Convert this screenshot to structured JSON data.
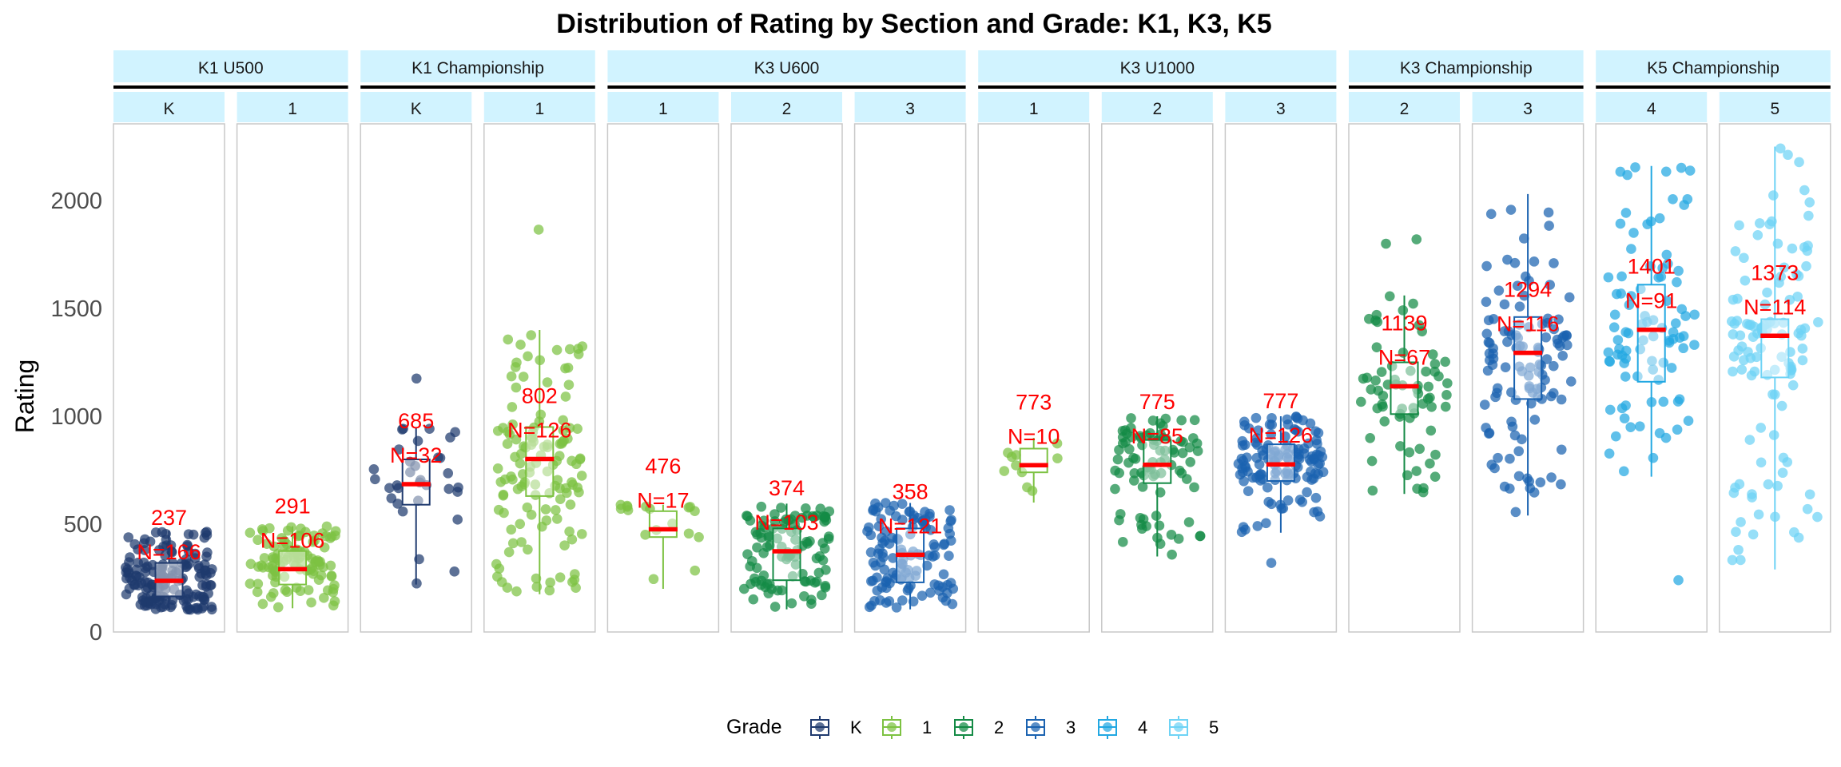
{
  "chart_data": {
    "type": "box",
    "title": "Distribution of Rating by Section and Grade: K1, K3, K5",
    "ylabel": "Rating",
    "xlabel": "",
    "ylim": [
      0,
      2350
    ],
    "yticks": [
      0,
      500,
      1000,
      1500,
      2000
    ],
    "legend": {
      "title": "Grade",
      "position": "bottom"
    },
    "grades": [
      {
        "key": "K",
        "label": "K",
        "color": "#1F3A6E"
      },
      {
        "key": "1",
        "label": "1",
        "color": "#7DC242"
      },
      {
        "key": "2",
        "label": "2",
        "color": "#148A45"
      },
      {
        "key": "3",
        "label": "3",
        "color": "#1A62B0"
      },
      {
        "key": "4",
        "label": "4",
        "color": "#22A8E2"
      },
      {
        "key": "5",
        "label": "5",
        "color": "#6ED3F5"
      }
    ],
    "median_color": "#FF0000",
    "annotation_color": "#FF0000",
    "strip_color": "#D1F3FF",
    "sections": [
      {
        "name": "K1 U500",
        "panels": [
          {
            "grade": "K",
            "label": "K",
            "median": 237,
            "n": 166,
            "median_text": "237",
            "n_text": "N=166",
            "q1": 165,
            "q3": 320,
            "whisker_low": 100,
            "whisker_high": 470,
            "min": 100,
            "max": 490,
            "outliers": []
          },
          {
            "grade": "1",
            "label": "1",
            "median": 291,
            "n": 106,
            "median_text": "291",
            "n_text": "N=106",
            "q1": 220,
            "q3": 375,
            "whisker_low": 110,
            "whisker_high": 490,
            "min": 110,
            "max": 495,
            "outliers": []
          }
        ]
      },
      {
        "name": "K1 Championship",
        "panels": [
          {
            "grade": "K",
            "label": "K",
            "median": 685,
            "n": 32,
            "median_text": "685",
            "n_text": "N=32",
            "q1": 590,
            "q3": 800,
            "whisker_low": 220,
            "whisker_high": 950,
            "min": 220,
            "max": 1180,
            "outliers": [
              1175
            ]
          },
          {
            "grade": "1",
            "label": "1",
            "median": 802,
            "n": 126,
            "median_text": "802",
            "n_text": "N=126",
            "q1": 630,
            "q3": 950,
            "whisker_low": 175,
            "whisker_high": 1400,
            "min": 170,
            "max": 1870,
            "outliers": [
              1865
            ]
          }
        ]
      },
      {
        "name": "K3 U600",
        "panels": [
          {
            "grade": "1",
            "label": "1",
            "median": 476,
            "n": 17,
            "median_text": "476",
            "n_text": "N=17",
            "q1": 440,
            "q3": 560,
            "whisker_low": 200,
            "whisker_high": 590,
            "min": 200,
            "max": 595,
            "outliers": []
          },
          {
            "grade": "2",
            "label": "2",
            "median": 374,
            "n": 103,
            "median_text": "374",
            "n_text": "N=103",
            "q1": 240,
            "q3": 480,
            "whisker_low": 105,
            "whisker_high": 595,
            "min": 105,
            "max": 598,
            "outliers": []
          },
          {
            "grade": "3",
            "label": "3",
            "median": 358,
            "n": 121,
            "median_text": "358",
            "n_text": "N=121",
            "q1": 230,
            "q3": 480,
            "whisker_low": 105,
            "whisker_high": 598,
            "min": 105,
            "max": 599,
            "outliers": []
          }
        ]
      },
      {
        "name": "K3 U1000",
        "panels": [
          {
            "grade": "1",
            "label": "1",
            "median": 773,
            "n": 10,
            "median_text": "773",
            "n_text": "N=10",
            "q1": 740,
            "q3": 850,
            "whisker_low": 600,
            "whisker_high": 900,
            "min": 600,
            "max": 920,
            "outliers": []
          },
          {
            "grade": "2",
            "label": "2",
            "median": 775,
            "n": 85,
            "median_text": "775",
            "n_text": "N=85",
            "q1": 690,
            "q3": 890,
            "whisker_low": 350,
            "whisker_high": 1000,
            "min": 350,
            "max": 1000,
            "outliers": []
          },
          {
            "grade": "3",
            "label": "3",
            "median": 777,
            "n": 126,
            "median_text": "777",
            "n_text": "N=126",
            "q1": 700,
            "q3": 870,
            "whisker_low": 460,
            "whisker_high": 1000,
            "min": 320,
            "max": 1000,
            "outliers": [
              320
            ]
          }
        ]
      },
      {
        "name": "K3 Championship",
        "panels": [
          {
            "grade": "2",
            "label": "2",
            "median": 1139,
            "n": 67,
            "median_text": "1139",
            "n_text": "N=67",
            "q1": 1010,
            "q3": 1250,
            "whisker_low": 640,
            "whisker_high": 1560,
            "min": 625,
            "max": 1820,
            "outliers": [
              1800,
              1820
            ]
          },
          {
            "grade": "3",
            "label": "3",
            "median": 1294,
            "n": 116,
            "median_text": "1294",
            "n_text": "N=116",
            "q1": 1080,
            "q3": 1460,
            "whisker_low": 540,
            "whisker_high": 2030,
            "min": 540,
            "max": 2040,
            "outliers": []
          }
        ]
      },
      {
        "name": "K5 Championship",
        "panels": [
          {
            "grade": "4",
            "label": "4",
            "median": 1401,
            "n": 91,
            "median_text": "1401",
            "n_text": "N=91",
            "q1": 1160,
            "q3": 1610,
            "whisker_low": 720,
            "whisker_high": 2160,
            "min": 240,
            "max": 2170,
            "outliers": [
              240
            ]
          },
          {
            "grade": "5",
            "label": "5",
            "median": 1373,
            "n": 114,
            "median_text": "1373",
            "n_text": "N=114",
            "q1": 1180,
            "q3": 1450,
            "whisker_low": 290,
            "whisker_high": 2250,
            "min": 290,
            "max": 2250,
            "outliers": []
          }
        ]
      }
    ]
  }
}
